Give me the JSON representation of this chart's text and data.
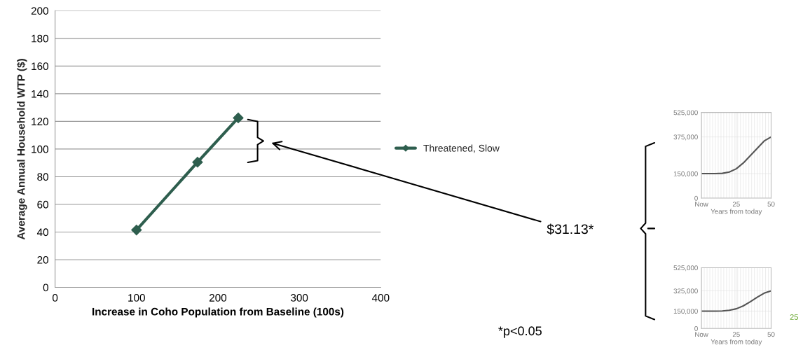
{
  "chart_data": [
    {
      "type": "line",
      "x": [
        100,
        175,
        225
      ],
      "xlabel": "Increase in Coho Population from Baseline (100s)",
      "ylabel": "Average Annual Household WTP ($)",
      "series": [
        {
          "name": "Threatened, Slow",
          "color": "#2e5e4e",
          "values": [
            41.5,
            90.5,
            122.5
          ]
        }
      ],
      "xlim": [
        0,
        400
      ],
      "xticks": [
        0,
        100,
        200,
        300,
        400
      ],
      "ylim": [
        0,
        200
      ],
      "yticks": [
        0,
        20,
        40,
        60,
        80,
        100,
        120,
        140,
        160,
        180,
        200
      ],
      "grid": "y",
      "legend": "right",
      "marker": "diamond",
      "line_style": "solid",
      "annotations": [
        "$31.13*",
        "*p<0.05",
        "25"
      ]
    },
    {
      "type": "line",
      "x": [
        0,
        5,
        10,
        15,
        20,
        25,
        30,
        35,
        40,
        45,
        50
      ],
      "xlabel": "Years from today",
      "series": [
        {
          "color": "#555555",
          "values": [
            150000,
            150000,
            150000,
            152000,
            160000,
            180000,
            215000,
            260000,
            305000,
            350000,
            375000
          ]
        }
      ],
      "xlim": [
        0,
        50
      ],
      "xticks": [
        {
          "value": 0,
          "label": "Now"
        },
        25,
        50
      ],
      "ylim": [
        0,
        525000
      ],
      "yticks": [
        0,
        {
          "value": 150000,
          "label": "150,000"
        },
        {
          "value": 375000,
          "label": "375,000"
        },
        {
          "value": 525000,
          "label": "525,000"
        }
      ],
      "grid": true,
      "marker": "none",
      "line_style": "solid"
    },
    {
      "type": "line",
      "x": [
        0,
        5,
        10,
        15,
        20,
        25,
        30,
        35,
        40,
        45,
        50
      ],
      "xlabel": "Years from today",
      "series": [
        {
          "color": "#555555",
          "values": [
            150000,
            150000,
            150000,
            151000,
            157000,
            170000,
            195000,
            230000,
            270000,
            305000,
            325000
          ]
        }
      ],
      "xlim": [
        0,
        50
      ],
      "xticks": [
        {
          "value": 0,
          "label": "Now"
        },
        25,
        50
      ],
      "ylim": [
        0,
        525000
      ],
      "yticks": [
        0,
        {
          "value": 150000,
          "label": "150,000"
        },
        {
          "value": 325000,
          "label": "325,000"
        },
        {
          "value": 525000,
          "label": "525,000"
        }
      ],
      "grid": true,
      "marker": "none",
      "line_style": "solid"
    }
  ]
}
